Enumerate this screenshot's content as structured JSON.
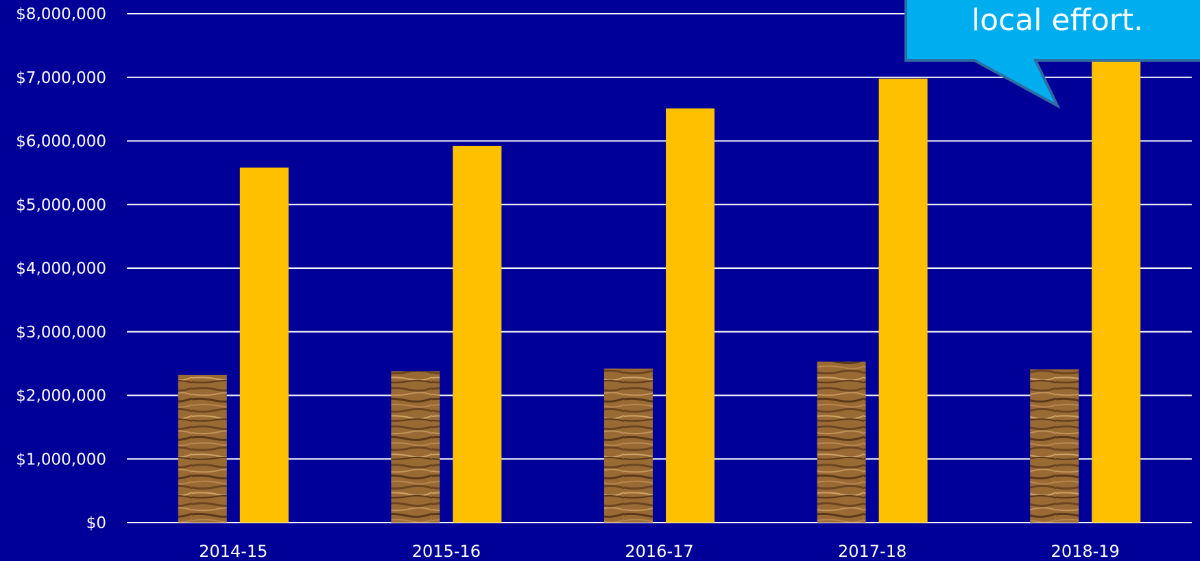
{
  "chart_data": {
    "type": "bar",
    "categories": [
      "2014-15",
      "2015-16",
      "2016-17",
      "2017-18",
      "2018-19"
    ],
    "series": [
      {
        "values": [
          2320000,
          2380000,
          2420000,
          2530000,
          2410000
        ],
        "fill": "wood-texture"
      },
      {
        "values": [
          5580000,
          5920000,
          6510000,
          6980000,
          7500000
        ],
        "color": "#FFC000"
      }
    ],
    "ylim": [
      0,
      8000000
    ],
    "yticks": [
      "$0",
      "$1,000,000",
      "$2,000,000",
      "$3,000,000",
      "$4,000,000",
      "$5,000,000",
      "$6,000,000",
      "$7,000,000",
      "$8,000,000"
    ],
    "grid": true,
    "background": "#000099",
    "gridline_color": "#FFFFFF",
    "annotation": {
      "text": "local effort.",
      "color": "#00AEEF",
      "border_color": "#2E6DA4"
    }
  }
}
